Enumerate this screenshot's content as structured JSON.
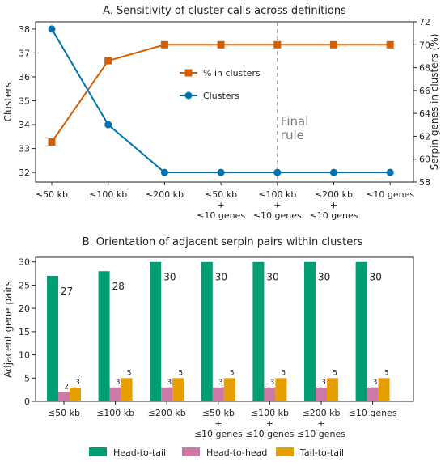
{
  "chart_data": [
    {
      "type": "line",
      "title": "A. Sensitivity of cluster calls across definitions",
      "xlabel": "",
      "ylabel": "Clusters",
      "y2label": "Serpin genes in clusters (%)",
      "categories": [
        [
          "≤50 kb"
        ],
        [
          "≤100 kb"
        ],
        [
          "≤200 kb"
        ],
        [
          "≤50 kb",
          "+",
          "≤10 genes"
        ],
        [
          "≤100 kb",
          "+",
          "≤10 genes"
        ],
        [
          "≤200 kb",
          "+",
          "≤10 genes"
        ],
        [
          "≤10 genes"
        ]
      ],
      "ylim": [
        31.6,
        38.3
      ],
      "yticks": [
        32,
        33,
        34,
        35,
        36,
        37,
        38
      ],
      "y2lim": [
        58,
        72
      ],
      "y2ticks": [
        58,
        60,
        62,
        64,
        66,
        68,
        70,
        72
      ],
      "series": [
        {
          "name": "% in clusters",
          "axis": "right",
          "color": "#d55e00",
          "marker": "square",
          "values": [
            61.5,
            68.6,
            70.0,
            70.0,
            70.0,
            70.0,
            70.0
          ]
        },
        {
          "name": "Clusters",
          "axis": "left",
          "color": "#0072b2",
          "marker": "circle",
          "values": [
            38,
            34,
            32,
            32,
            32,
            32,
            32
          ]
        }
      ],
      "legend_position": "center",
      "annotation": {
        "category_index": 4,
        "text": [
          "Final",
          "rule"
        ],
        "color": "#777777"
      },
      "grid": false
    },
    {
      "type": "bar",
      "title": "B. Orientation of adjacent serpin pairs within clusters",
      "xlabel": "",
      "ylabel": "Adjacent gene pairs",
      "categories": [
        [
          "≤50 kb"
        ],
        [
          "≤100 kb"
        ],
        [
          "≤200 kb"
        ],
        [
          "≤50 kb",
          "+",
          "≤10 genes"
        ],
        [
          "≤100 kb",
          "+",
          "≤10 genes"
        ],
        [
          "≤200 kb",
          "+",
          "≤10 genes"
        ],
        [
          "≤10 genes"
        ]
      ],
      "ylim": [
        0,
        31
      ],
      "yticks": [
        0,
        5,
        10,
        15,
        20,
        25,
        30
      ],
      "series": [
        {
          "name": "Head-to-tail",
          "color": "#009e73",
          "values": [
            27,
            28,
            30,
            30,
            30,
            30,
            30
          ]
        },
        {
          "name": "Head-to-head",
          "color": "#cc79a7",
          "values": [
            2,
            3,
            3,
            3,
            3,
            3,
            3
          ]
        },
        {
          "name": "Tail-to-tail",
          "color": "#e69f00",
          "values": [
            3,
            5,
            5,
            5,
            5,
            5,
            5
          ]
        }
      ],
      "legend_position": "bottom",
      "grid": false
    }
  ]
}
